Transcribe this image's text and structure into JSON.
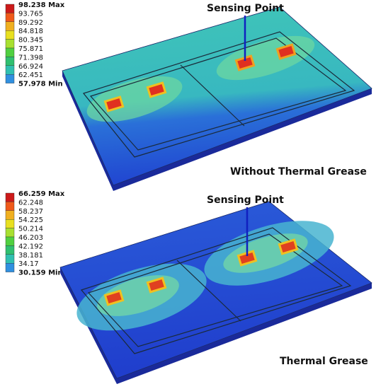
{
  "panels": [
    {
      "legend": [
        "98.238 Max",
        "93.765",
        "89.292",
        "84.818",
        "80.345",
        "75.871",
        "71.398",
        "66.924",
        "62.451",
        "57.978 Min"
      ],
      "annotation": "Sensing Point",
      "caption": "Without Thermal Grease"
    },
    {
      "legend": [
        "66.259 Max",
        "62.248",
        "58.237",
        "54.225",
        "50.214",
        "46.203",
        "42.192",
        "38.181",
        "34.17",
        "30.159 Min"
      ],
      "annotation": "Sensing Point",
      "caption": "Thermal Grease"
    }
  ]
}
